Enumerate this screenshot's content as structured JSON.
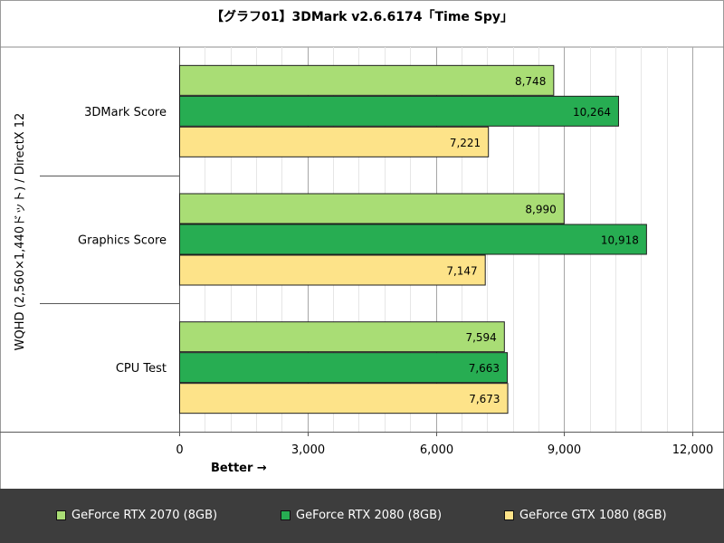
{
  "chart_data": {
    "type": "bar",
    "orientation": "horizontal",
    "title": "【グラフ01】3DMark v2.6.6174「Time Spy」",
    "ylabel": "WQHD (2,560×1,440ドット) / DirectX 12",
    "xlabel": "Better →",
    "categories": [
      "3DMark Score",
      "Graphics Score",
      "CPU Test"
    ],
    "series": [
      {
        "name": "GeForce RTX 2070 (8GB)",
        "color": "#a9dd75",
        "values": [
          8748,
          8990,
          7594
        ]
      },
      {
        "name": "GeForce RTX 2080 (8GB)",
        "color": "#27ad52",
        "values": [
          10264,
          10918,
          7663
        ]
      },
      {
        "name": "GeForce GTX 1080 (8GB)",
        "color": "#fde389",
        "values": [
          7221,
          7147,
          7673
        ]
      }
    ],
    "value_labels": [
      [
        "8,748",
        "8,990",
        "7,594"
      ],
      [
        "10,264",
        "10,918",
        "7,663"
      ],
      [
        "7,221",
        "7,147",
        "7,673"
      ]
    ],
    "xlim": [
      0,
      12000
    ],
    "xticks": [
      0,
      3000,
      6000,
      9000,
      12000
    ],
    "xtick_labels": [
      "0",
      "3,000",
      "6,000",
      "9,000",
      "12,000"
    ],
    "grid": true,
    "legend_position": "bottom"
  },
  "colors": {
    "legend_background": "#3d3d3d",
    "grid": "#d9d9d9"
  }
}
